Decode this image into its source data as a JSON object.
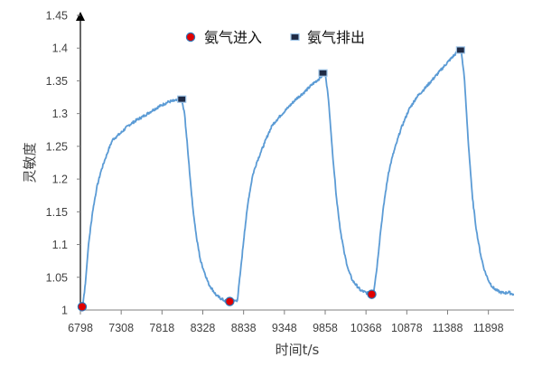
{
  "chart_data": {
    "type": "line",
    "title": "",
    "xlabel": "时间t/s",
    "ylabel": "灵敏度",
    "xlim": [
      6798,
      12218
    ],
    "ylim": [
      1,
      1.45
    ],
    "x_tick_labels": [
      "6798",
      "7308",
      "7818",
      "8328",
      "8838",
      "9348",
      "9858",
      "10368",
      "10878",
      "11388",
      "11898"
    ],
    "y_tick_labels": [
      "1",
      "1.05",
      "1.1",
      "1.15",
      "1.2",
      "1.25",
      "1.3",
      "1.35",
      "1.4",
      "1.45"
    ],
    "grid": false,
    "legend_position": "top",
    "colors": {
      "line": "#5b9bd5",
      "in_marker": "#e00000",
      "out_marker": "#1f2a44",
      "axis": "#7f7f7f",
      "text": "#404040"
    },
    "series": [
      {
        "name": "",
        "x": [
          6798,
          6818,
          6825,
          6860,
          6900,
          6950,
          7000,
          7050,
          7100,
          7150,
          7200,
          7250,
          7300,
          7400,
          7500,
          7600,
          7700,
          7800,
          7900,
          8000,
          8060,
          8100,
          8150,
          8200,
          8250,
          8300,
          8400,
          8500,
          8600,
          8660,
          8700,
          8760,
          8800,
          8850,
          8900,
          8950,
          9000,
          9050,
          9100,
          9150,
          9200,
          9250,
          9300,
          9400,
          9500,
          9600,
          9700,
          9800,
          9820,
          9860,
          9900,
          9950,
          10000,
          10050,
          10100,
          10150,
          10200,
          10300,
          10400,
          10408,
          10440,
          10460,
          10500,
          10550,
          10600,
          10650,
          10700,
          10750,
          10800,
          10850,
          10900,
          11000,
          11100,
          11200,
          11300,
          11400,
          11500,
          11520,
          11540,
          11560,
          11600,
          11650,
          11700,
          11750,
          11800,
          11850,
          11900,
          11950,
          12000,
          12050,
          12100,
          12160,
          12180,
          12218
        ],
        "values": [
          1.005,
          1.005,
          1.005,
          1.04,
          1.1,
          1.15,
          1.185,
          1.21,
          1.228,
          1.245,
          1.26,
          1.265,
          1.27,
          1.282,
          1.29,
          1.297,
          1.305,
          1.312,
          1.318,
          1.32,
          1.322,
          1.3,
          1.23,
          1.16,
          1.11,
          1.075,
          1.04,
          1.022,
          1.014,
          1.013,
          1.013,
          1.015,
          1.06,
          1.12,
          1.17,
          1.205,
          1.225,
          1.24,
          1.255,
          1.27,
          1.283,
          1.29,
          1.297,
          1.31,
          1.323,
          1.333,
          1.345,
          1.355,
          1.358,
          1.362,
          1.32,
          1.24,
          1.17,
          1.12,
          1.085,
          1.06,
          1.045,
          1.03,
          1.025,
          1.025,
          1.024,
          1.025,
          1.06,
          1.12,
          1.17,
          1.21,
          1.235,
          1.255,
          1.275,
          1.29,
          1.305,
          1.325,
          1.338,
          1.352,
          1.366,
          1.38,
          1.393,
          1.396,
          1.397,
          1.396,
          1.35,
          1.25,
          1.17,
          1.12,
          1.085,
          1.06,
          1.045,
          1.035,
          1.03,
          1.027,
          1.026,
          1.027,
          1.025,
          1.024
        ]
      }
    ],
    "legend": [
      {
        "label": "氨气进入",
        "marker": "circle"
      },
      {
        "label": "氨气排出",
        "marker": "square"
      }
    ],
    "markers_in": {
      "name": "氨气进入",
      "x": [
        6820,
        8665,
        10440
      ],
      "y": [
        1.005,
        1.013,
        1.024
      ]
    },
    "markers_out": {
      "name": "氨气排出",
      "x": [
        8065,
        9830,
        11550
      ],
      "y": [
        1.322,
        1.362,
        1.397
      ]
    }
  }
}
